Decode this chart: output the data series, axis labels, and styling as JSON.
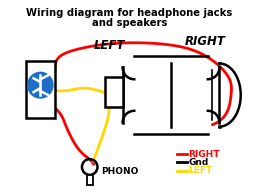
{
  "title_line1": "Wiring diagram for headphone jacks",
  "title_line2": "and speakers",
  "bg_color": "#ffffff",
  "label_left": "LEFT",
  "label_right": "RIGHT",
  "label_phono": "PHONO",
  "legend_right": "RIGHT",
  "legend_gnd": "Gnd",
  "legend_left": "LEFT",
  "color_red": "#ff0000",
  "color_yellow": "#ffd700",
  "color_black": "#000000",
  "bt_blue": "#1e6ec8"
}
